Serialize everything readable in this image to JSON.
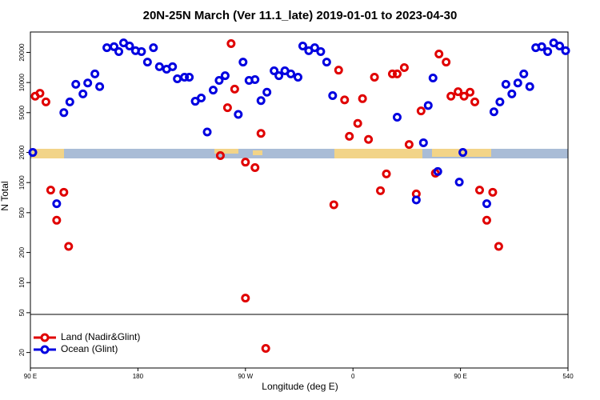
{
  "chart_data": {
    "type": "scatter",
    "title": "20N-25N March (Ver 11.1_late)   2019-01-01 to 2023-04-30",
    "x_label": "Longitude (deg E)",
    "y_label": "N Total",
    "log_y": true,
    "legend": "bottom-left",
    "xlim": [
      90,
      540
    ],
    "xticks": [
      {
        "value": 90,
        "label": "90 E"
      },
      180,
      {
        "value": 270,
        "label": "90 W"
      },
      {
        "value": 360,
        "label": "0"
      },
      {
        "value": 450,
        "label": "90 E"
      },
      540
    ],
    "ylim": [
      14,
      32000
    ],
    "yticks": [
      20,
      50,
      100,
      200,
      500,
      1000,
      2000,
      5000,
      10000,
      20000
    ],
    "series": [
      {
        "name": "Land (Nadir&Glint)",
        "color": "#e00000",
        "x": [
          94,
          98,
          103,
          107,
          112,
          118,
          122,
          249,
          255,
          258,
          261,
          270,
          270,
          278,
          283,
          287,
          344,
          348,
          353,
          357,
          364,
          368,
          373,
          378,
          383,
          388,
          393,
          397,
          403,
          407,
          413,
          417,
          429,
          432,
          438,
          442,
          448,
          453,
          458,
          462,
          466,
          472,
          477,
          482
        ],
        "values": [
          7300,
          7800,
          6400,
          840,
          420,
          800,
          230,
          1860,
          5600,
          24500,
          8600,
          1600,
          70,
          1410,
          3100,
          22,
          600,
          13300,
          6700,
          2900,
          3900,
          6900,
          2700,
          11300,
          830,
          1220,
          12200,
          12200,
          14100,
          2400,
          770,
          5200,
          1240,
          19300,
          16000,
          7300,
          8100,
          7300,
          8000,
          6400,
          840,
          420,
          800,
          230
        ]
      },
      {
        "name": "Ocean (Glint)",
        "color": "#0000e0",
        "x": [
          92,
          112,
          118,
          123,
          128,
          134,
          138,
          144,
          148,
          154,
          160,
          164,
          168,
          173,
          178,
          183,
          188,
          193,
          198,
          204,
          209,
          213,
          219,
          223,
          228,
          233,
          238,
          243,
          248,
          253,
          264,
          268,
          273,
          278,
          283,
          288,
          294,
          298,
          303,
          308,
          314,
          318,
          323,
          328,
          333,
          338,
          343,
          397,
          413,
          419,
          423,
          427,
          431,
          449,
          452,
          472,
          478,
          483,
          488,
          493,
          498,
          503,
          508,
          513,
          518,
          523,
          528,
          533,
          538
        ],
        "values": [
          2000,
          615,
          5000,
          6400,
          9600,
          7700,
          9900,
          12200,
          9100,
          22300,
          22800,
          20400,
          24900,
          23200,
          20800,
          20400,
          16000,
          22300,
          14400,
          13600,
          14400,
          10900,
          11300,
          11300,
          6500,
          7000,
          3200,
          8400,
          10500,
          11700,
          4800,
          16000,
          10500,
          10700,
          6600,
          8000,
          13100,
          11700,
          13100,
          12200,
          11300,
          23200,
          20800,
          22300,
          20400,
          16000,
          7400,
          4500,
          670,
          2500,
          5900,
          11100,
          1290,
          1010,
          2000,
          615,
          5100,
          6400,
          9600,
          7700,
          9900,
          12200,
          9100,
          22300,
          22800,
          20400,
          24900,
          23200,
          20800
        ]
      }
    ]
  }
}
